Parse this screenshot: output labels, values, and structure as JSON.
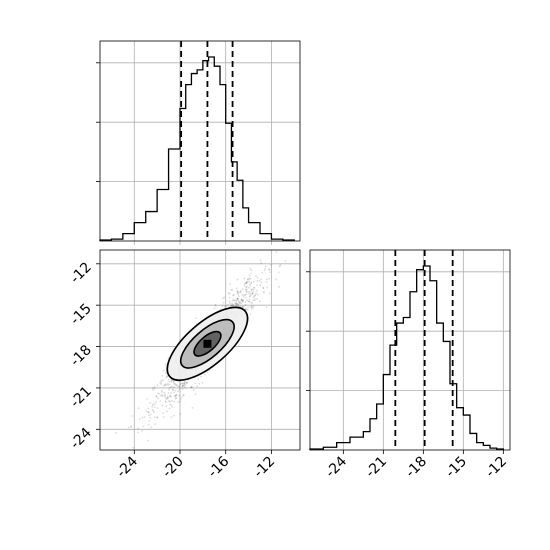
{
  "chart_data": [
    {
      "type": "histogram",
      "panel": "top-left",
      "x_range": [
        -27,
        -9.5
      ],
      "xticks": [
        -24,
        -20,
        -16,
        -12
      ],
      "grid": true,
      "quantile_lines": [
        -19.9,
        -17.6,
        -15.4
      ],
      "bin_edges": [
        -27,
        -26,
        -25,
        -24,
        -23,
        -22,
        -21,
        -20,
        -19.5,
        -19,
        -18.5,
        -18,
        -17.5,
        -17,
        -16.5,
        -16,
        -15.5,
        -15,
        -14.5,
        -14,
        -13,
        -12,
        -11,
        -10
      ],
      "counts": [
        0.005,
        0.01,
        0.04,
        0.1,
        0.16,
        0.28,
        0.5,
        0.72,
        0.85,
        0.91,
        0.93,
        0.98,
        1.0,
        0.95,
        0.85,
        0.64,
        0.43,
        0.33,
        0.18,
        0.1,
        0.04,
        0.01,
        0.005
      ]
    },
    {
      "type": "scatter-density",
      "panel": "bottom-left",
      "x_range": [
        -27,
        -9.5
      ],
      "y_range": [
        -25.5,
        -11
      ],
      "xticks": [
        "-24",
        "-20",
        "-16",
        "-12"
      ],
      "yticks": [
        "-12",
        "-15",
        "-18",
        "-21",
        "-24"
      ],
      "grid": true,
      "center": [
        -17.6,
        -17.8
      ],
      "contour_levels": [
        {
          "rx": 3.9,
          "ry": 0.95,
          "angle_deg": 41
        },
        {
          "rx": 2.6,
          "ry": 0.62,
          "angle_deg": 41
        },
        {
          "rx": 1.3,
          "ry": 0.33,
          "angle_deg": 41
        }
      ]
    },
    {
      "type": "histogram",
      "panel": "bottom-right",
      "x_range": [
        -26.5,
        -11.5
      ],
      "xticks": [
        -24,
        -21,
        -18,
        -15,
        -12
      ],
      "grid": true,
      "quantile_lines": [
        -20.1,
        -17.9,
        -15.8
      ],
      "bin_edges": [
        -26.5,
        -25.5,
        -24.5,
        -23.5,
        -22.5,
        -22,
        -21.5,
        -21,
        -20.5,
        -20,
        -19.5,
        -19,
        -18.5,
        -18,
        -17.5,
        -17,
        -16.5,
        -16,
        -15.5,
        -15,
        -14.5,
        -14,
        -13.5,
        -13,
        -12.5,
        -12
      ],
      "counts": [
        0.005,
        0.015,
        0.04,
        0.07,
        0.1,
        0.17,
        0.25,
        0.41,
        0.57,
        0.69,
        0.72,
        0.86,
        0.98,
        1.0,
        0.92,
        0.69,
        0.59,
        0.36,
        0.23,
        0.19,
        0.09,
        0.04,
        0.025,
        0.01,
        0.005
      ]
    }
  ]
}
